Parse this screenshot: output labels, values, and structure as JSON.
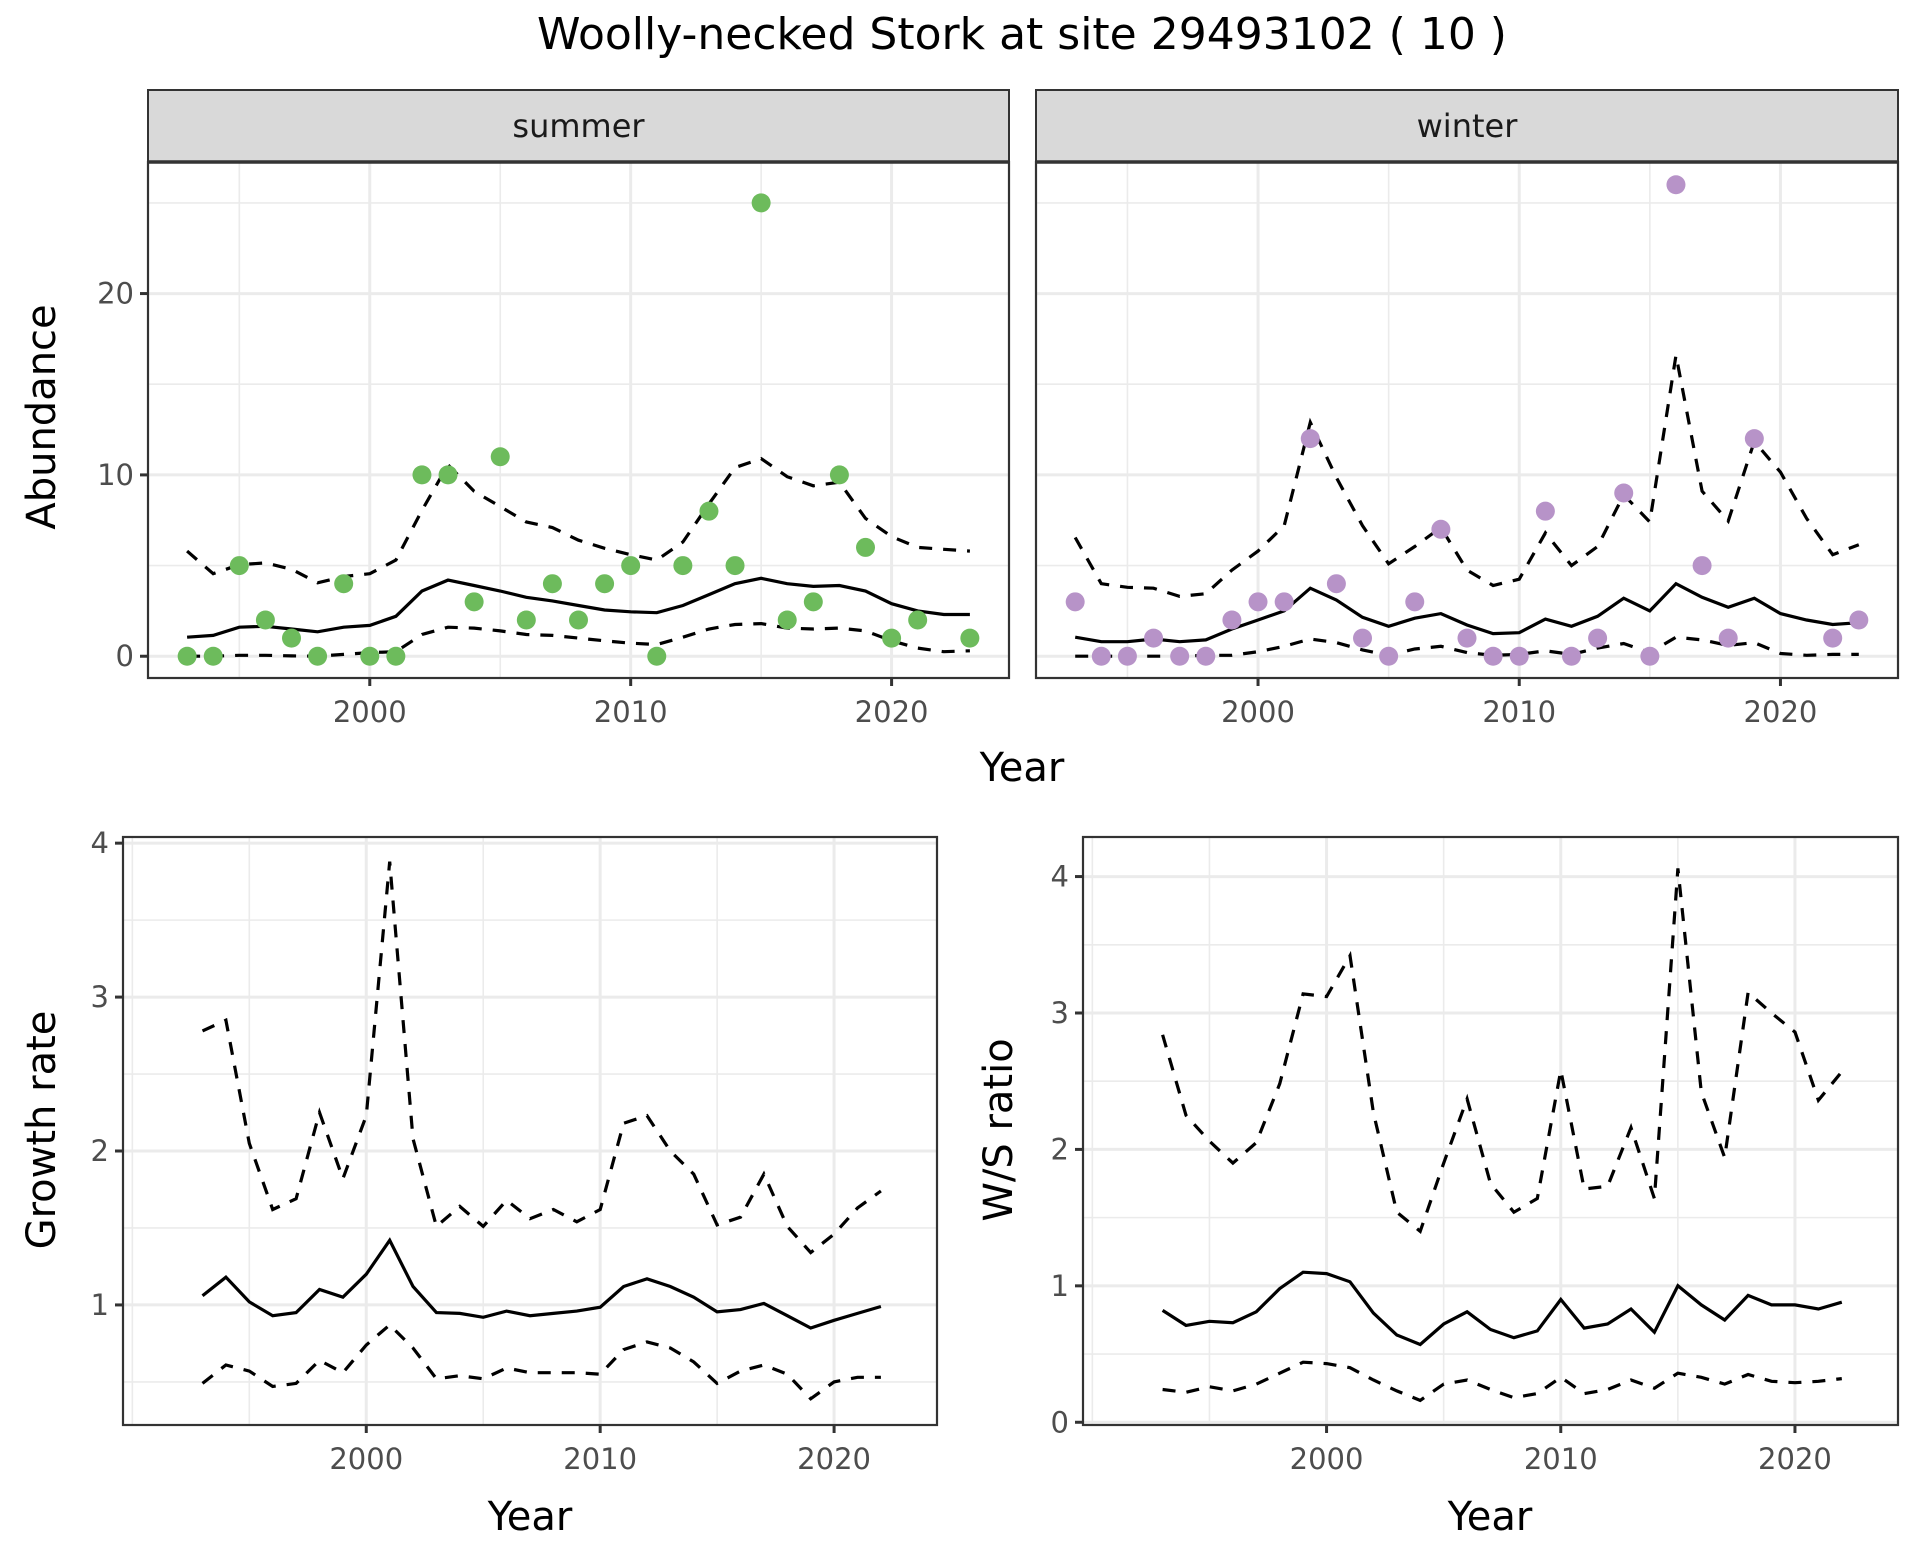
{
  "title": "Woolly-necked Stork at site 29493102 ( 10 )",
  "colors": {
    "summer_points": "#6dbb5c",
    "winter_points": "#b793c8",
    "strip_fill": "#d9d9d9",
    "panel_border": "#333333",
    "grid": "#ebebeb",
    "line": "#000000"
  },
  "chart_data": [
    {
      "id": "abundance",
      "type": "scatter+line",
      "facet_label": "summer",
      "xlabel": "Year",
      "ylabel": "Abundance",
      "xlim": [
        1991.5,
        2024.5
      ],
      "ylim": [
        -1.2,
        27.2
      ],
      "xticks": [
        2000,
        2010,
        2020
      ],
      "yticks": [
        0,
        10,
        20
      ],
      "years": [
        1993,
        1994,
        1995,
        1996,
        1997,
        1998,
        1999,
        2000,
        2001,
        2002,
        2003,
        2004,
        2005,
        2006,
        2007,
        2008,
        2009,
        2010,
        2011,
        2012,
        2013,
        2014,
        2015,
        2016,
        2017,
        2018,
        2019,
        2020,
        2021,
        2022,
        2023
      ],
      "points": [
        0,
        0,
        5,
        2,
        1,
        0,
        4,
        0,
        0,
        10,
        10,
        3,
        11,
        2,
        4,
        2,
        4,
        5,
        0,
        5,
        8,
        5,
        25,
        2,
        3,
        10,
        6,
        1,
        2,
        null,
        1
      ],
      "mean": [
        1.05,
        1.15,
        1.6,
        1.65,
        1.5,
        1.35,
        1.6,
        1.7,
        2.2,
        3.6,
        4.2,
        3.9,
        3.6,
        3.25,
        3.05,
        2.8,
        2.55,
        2.45,
        2.4,
        2.8,
        3.4,
        4.0,
        4.3,
        4.0,
        3.85,
        3.9,
        3.6,
        2.9,
        2.5,
        2.3,
        2.3
      ],
      "upper": [
        5.8,
        4.55,
        5.05,
        5.15,
        4.8,
        4.05,
        4.4,
        4.55,
        5.3,
        8.05,
        10.55,
        9.1,
        8.25,
        7.4,
        7.1,
        6.4,
        5.95,
        5.6,
        5.3,
        6.3,
        8.4,
        10.4,
        10.9,
        9.9,
        9.4,
        9.6,
        7.6,
        6.6,
        6.0,
        5.9,
        5.8
      ],
      "lower": [
        0,
        0,
        0.05,
        0.05,
        0.02,
        0,
        0.1,
        0.2,
        0.25,
        1.2,
        1.6,
        1.55,
        1.4,
        1.2,
        1.15,
        1.0,
        0.85,
        0.72,
        0.65,
        1.05,
        1.5,
        1.75,
        1.8,
        1.55,
        1.5,
        1.55,
        1.4,
        0.85,
        0.45,
        0.25,
        0.3
      ]
    },
    {
      "id": "abundance-winter",
      "type": "scatter+line",
      "facet_label": "winter",
      "xlabel": "Year",
      "ylabel": "Abundance",
      "xlim": [
        1991.5,
        2024.5
      ],
      "ylim": [
        -1.2,
        27.2
      ],
      "xticks": [
        2000,
        2010,
        2020
      ],
      "yticks": [
        0,
        10,
        20
      ],
      "years": [
        1993,
        1994,
        1995,
        1996,
        1997,
        1998,
        1999,
        2000,
        2001,
        2002,
        2003,
        2004,
        2005,
        2006,
        2007,
        2008,
        2009,
        2010,
        2011,
        2012,
        2013,
        2014,
        2015,
        2016,
        2017,
        2018,
        2019,
        2020,
        2021,
        2022,
        2023
      ],
      "points": [
        3,
        0,
        0,
        1,
        0,
        0,
        2,
        3,
        3,
        12,
        4,
        1,
        0,
        3,
        7,
        1,
        0,
        0,
        8,
        0,
        1,
        9,
        0,
        26,
        5,
        1,
        12,
        null,
        null,
        1,
        2
      ],
      "mean": [
        1.05,
        0.8,
        0.8,
        0.95,
        0.8,
        0.9,
        1.5,
        2.0,
        2.5,
        3.75,
        3.1,
        2.15,
        1.65,
        2.1,
        2.35,
        1.72,
        1.25,
        1.3,
        2.05,
        1.65,
        2.2,
        3.2,
        2.5,
        4.0,
        3.25,
        2.7,
        3.2,
        2.35,
        2.0,
        1.75,
        1.85
      ],
      "upper": [
        6.55,
        4.0,
        3.8,
        3.75,
        3.3,
        3.45,
        4.75,
        5.8,
        7.2,
        12.9,
        9.85,
        7.2,
        5.1,
        6.05,
        7.1,
        4.75,
        3.9,
        4.25,
        6.8,
        5.0,
        6.05,
        8.9,
        7.4,
        16.6,
        9.1,
        7.45,
        11.85,
        10.15,
        7.6,
        5.6,
        6.15
      ],
      "lower": [
        0,
        0,
        0,
        0,
        0,
        0.05,
        0.05,
        0.25,
        0.55,
        0.95,
        0.75,
        0.35,
        0.05,
        0.4,
        0.55,
        0.2,
        0.05,
        0.1,
        0.3,
        0.1,
        0.45,
        0.7,
        0.2,
        1.05,
        0.9,
        0.6,
        0.75,
        0.15,
        0.05,
        0.1,
        0.1
      ]
    },
    {
      "id": "growth",
      "type": "line",
      "xlabel": "Year",
      "ylabel": "Growth rate",
      "xlim": [
        1989.6,
        2024.4
      ],
      "ylim": [
        0.22,
        4.04
      ],
      "xticks": [
        2000,
        2010,
        2020
      ],
      "yticks": [
        1,
        2,
        3,
        4
      ],
      "years": [
        1993,
        1994,
        1995,
        1996,
        1997,
        1998,
        1999,
        2000,
        2001,
        2002,
        2003,
        2004,
        2005,
        2006,
        2007,
        2008,
        2009,
        2010,
        2011,
        2012,
        2013,
        2014,
        2015,
        2016,
        2017,
        2018,
        2019,
        2020,
        2021,
        2022
      ],
      "mean": [
        1.06,
        1.18,
        1.02,
        0.93,
        0.95,
        1.1,
        1.05,
        1.2,
        1.42,
        1.12,
        0.95,
        0.945,
        0.92,
        0.96,
        0.93,
        0.945,
        0.96,
        0.985,
        1.12,
        1.17,
        1.12,
        1.05,
        0.955,
        0.97,
        1.01,
        0.93,
        0.85,
        0.9,
        0.945,
        0.99
      ],
      "upper": [
        2.78,
        2.85,
        2.05,
        1.62,
        1.69,
        2.25,
        1.82,
        2.23,
        3.88,
        2.08,
        1.51,
        1.64,
        1.51,
        1.68,
        1.56,
        1.62,
        1.54,
        1.62,
        2.18,
        2.23,
        2.0,
        1.85,
        1.52,
        1.57,
        1.85,
        1.51,
        1.34,
        1.46,
        1.63,
        1.74
      ],
      "lower": [
        0.49,
        0.61,
        0.57,
        0.47,
        0.49,
        0.64,
        0.56,
        0.74,
        0.87,
        0.72,
        0.52,
        0.54,
        0.52,
        0.59,
        0.56,
        0.56,
        0.56,
        0.55,
        0.71,
        0.76,
        0.72,
        0.63,
        0.49,
        0.57,
        0.61,
        0.55,
        0.39,
        0.5,
        0.53,
        0.53
      ]
    },
    {
      "id": "ws-ratio",
      "type": "line",
      "xlabel": "Year",
      "ylabel": "W/S ratio",
      "xlim": [
        1989.6,
        2024.4
      ],
      "ylim": [
        -0.02,
        4.29
      ],
      "xticks": [
        2000,
        2010,
        2020
      ],
      "yticks": [
        0,
        1,
        2,
        3,
        4
      ],
      "years": [
        1993,
        1994,
        1995,
        1996,
        1997,
        1998,
        1999,
        2000,
        2001,
        2002,
        2003,
        2004,
        2005,
        2006,
        2007,
        2008,
        2009,
        2010,
        2011,
        2012,
        2013,
        2014,
        2015,
        2016,
        2017,
        2018,
        2019,
        2020,
        2021,
        2022
      ],
      "mean": [
        0.82,
        0.71,
        0.74,
        0.73,
        0.81,
        0.98,
        1.1,
        1.09,
        1.03,
        0.8,
        0.64,
        0.57,
        0.72,
        0.81,
        0.68,
        0.62,
        0.67,
        0.9,
        0.69,
        0.72,
        0.83,
        0.66,
        1.0,
        0.86,
        0.75,
        0.93,
        0.86,
        0.86,
        0.83,
        0.88
      ],
      "upper": [
        2.84,
        2.25,
        2.06,
        1.9,
        2.05,
        2.48,
        3.14,
        3.12,
        3.42,
        2.27,
        1.54,
        1.4,
        1.9,
        2.37,
        1.75,
        1.54,
        1.64,
        2.58,
        1.71,
        1.73,
        2.16,
        1.64,
        4.06,
        2.42,
        1.94,
        3.15,
        3.0,
        2.86,
        2.36,
        2.57
      ],
      "lower": [
        0.24,
        0.22,
        0.26,
        0.23,
        0.28,
        0.36,
        0.44,
        0.43,
        0.4,
        0.31,
        0.23,
        0.16,
        0.28,
        0.31,
        0.24,
        0.18,
        0.21,
        0.33,
        0.21,
        0.24,
        0.31,
        0.25,
        0.36,
        0.33,
        0.28,
        0.35,
        0.3,
        0.29,
        0.3,
        0.32
      ]
    }
  ]
}
